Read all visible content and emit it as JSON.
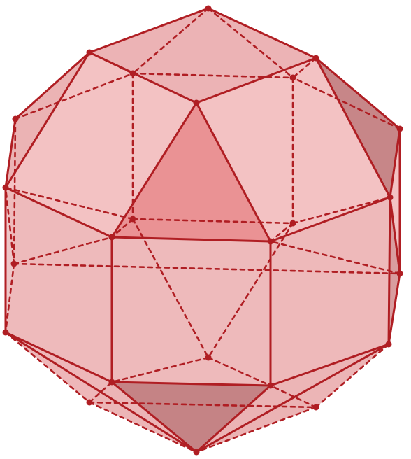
{
  "figure": {
    "kind": "polyhedron-diagram",
    "colors": {
      "edge": "#b01e23",
      "vertex": "#b01e23",
      "face_light": "#f3c2c3",
      "face_mid": "#e6a8aa",
      "face_dark": "#c27f82",
      "face_accent": "#e8898c"
    },
    "vertex_labels_shown": false
  }
}
